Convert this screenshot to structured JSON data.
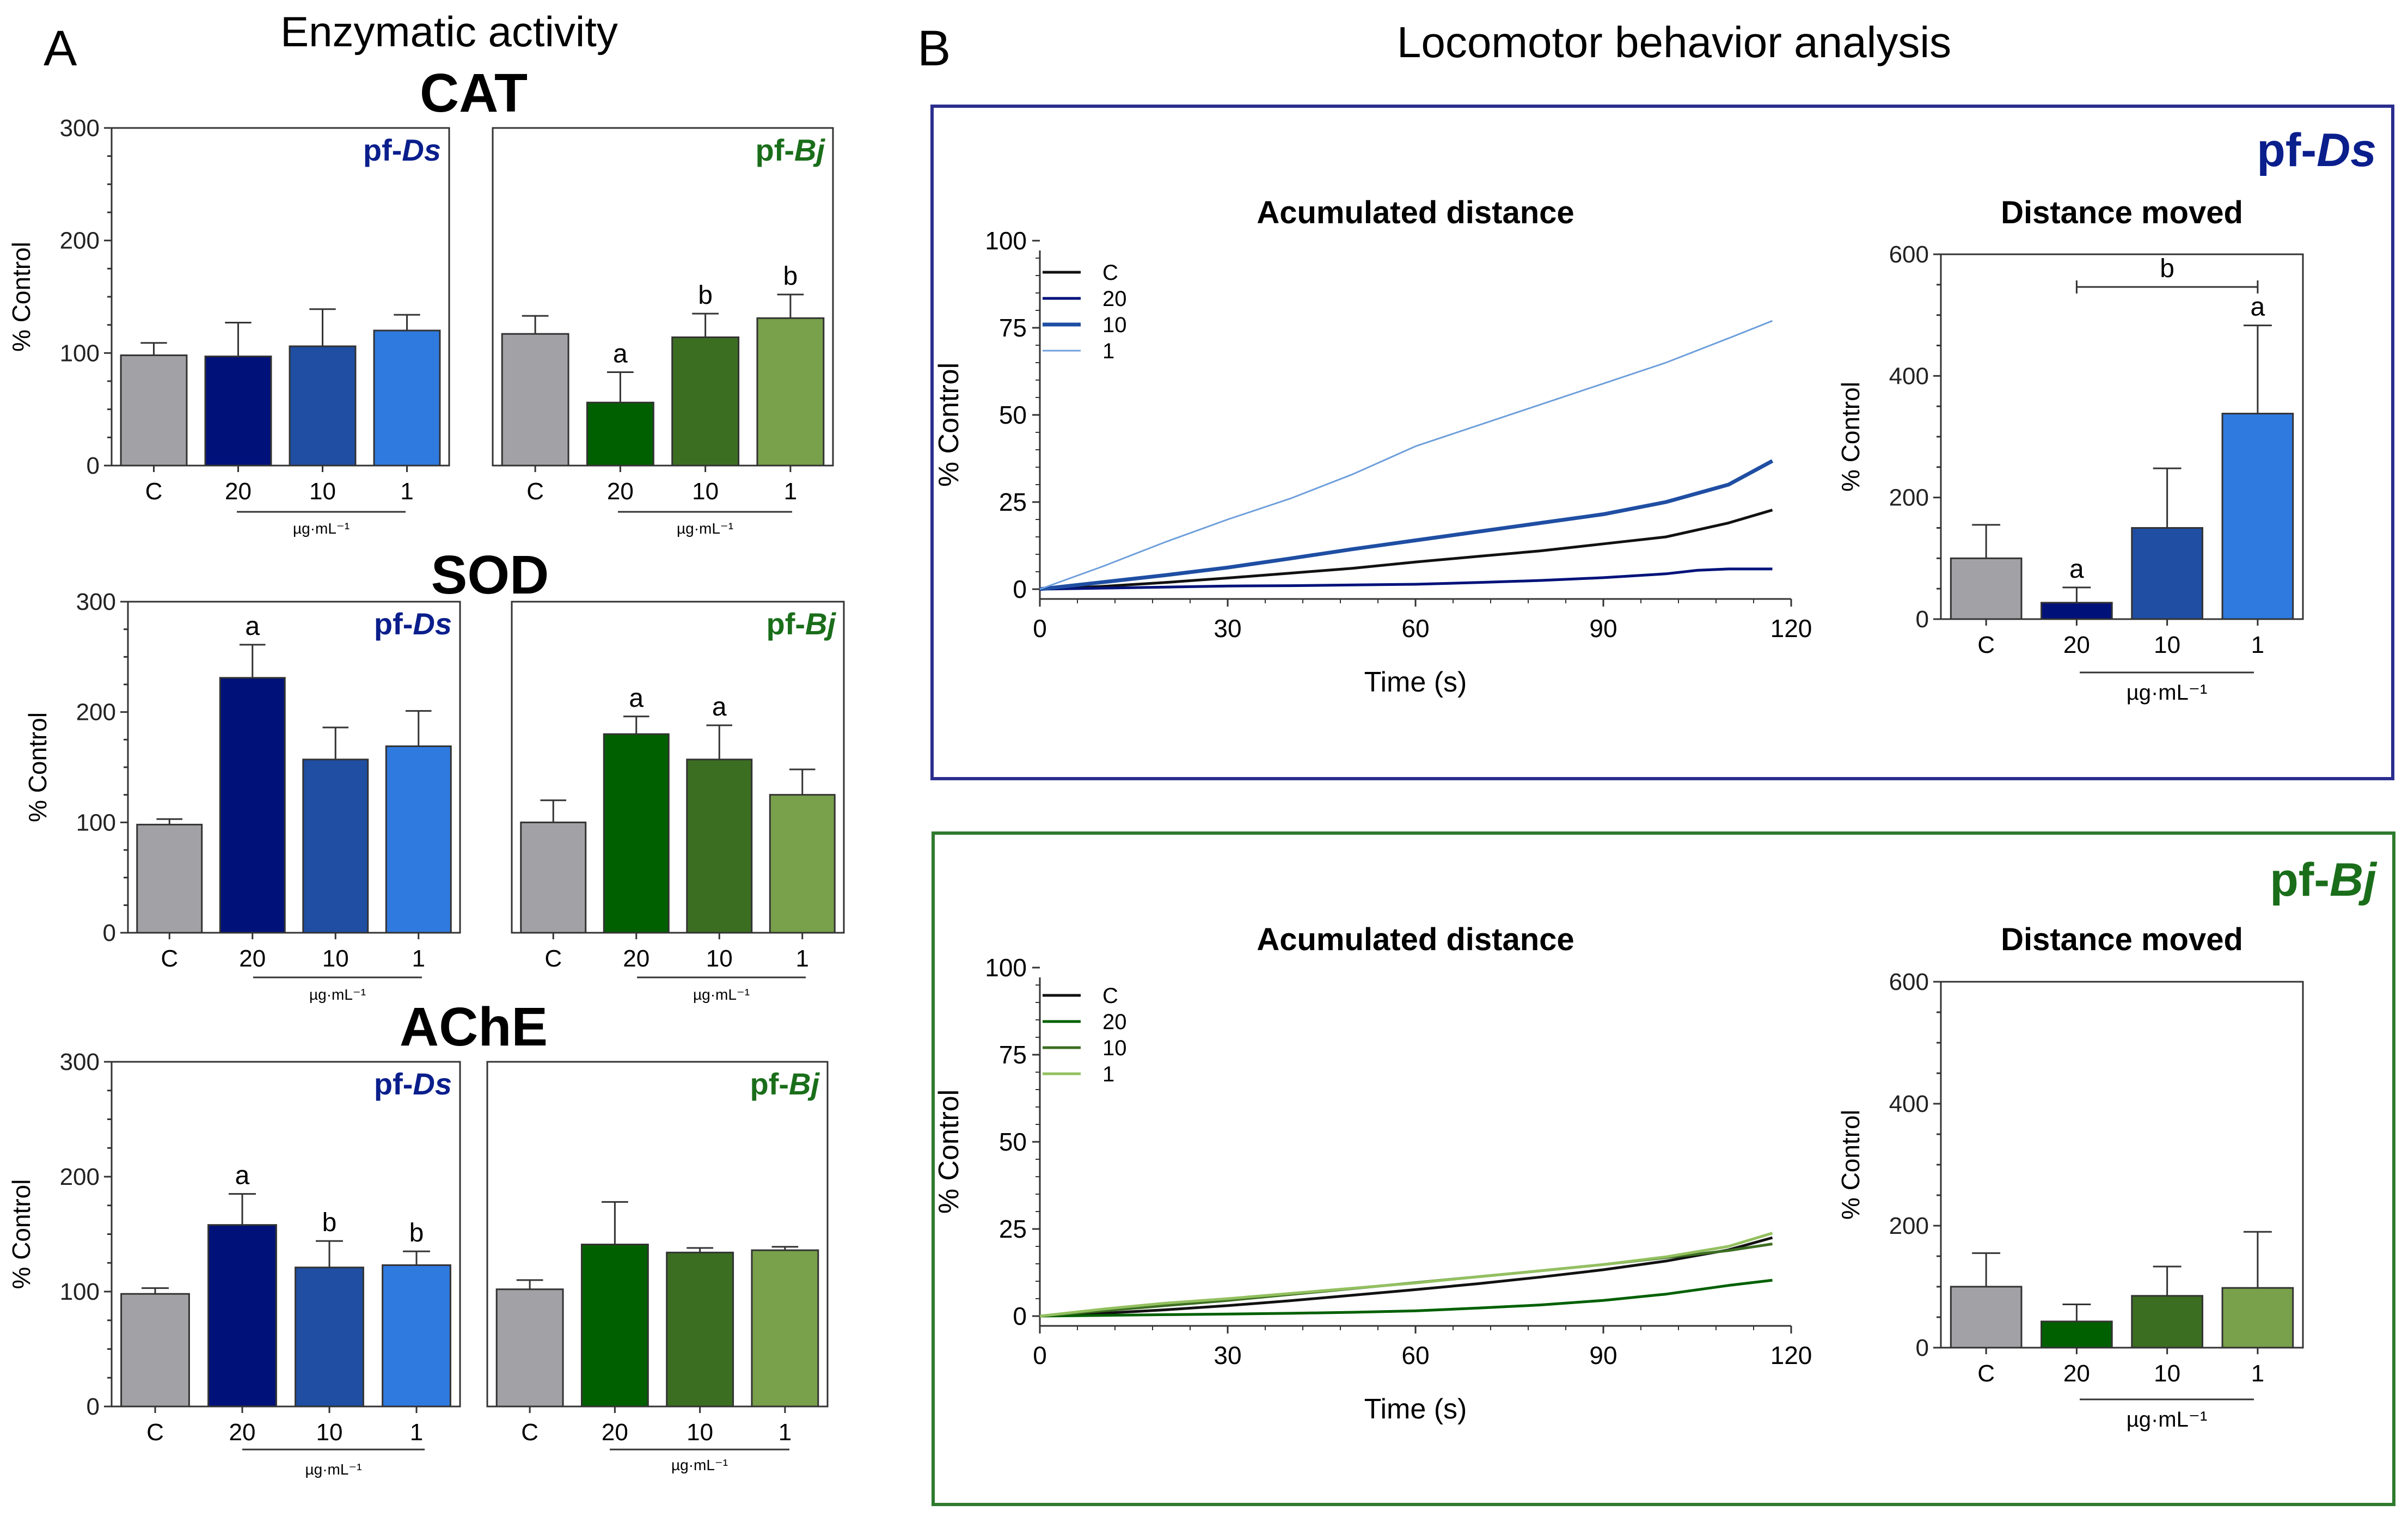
{
  "panel_a": {
    "letter": "A",
    "title": "Enzymatic activity"
  },
  "panel_b": {
    "letter": "B",
    "title": "Locomotor behavior analysis",
    "box_ds_label": {
      "prefix": "pf-",
      "species": "Ds"
    },
    "box_bj_label": {
      "prefix": "pf-",
      "species": "Bj"
    }
  },
  "colors": {
    "gray": "#A2A2A6",
    "ds20": "#00127A",
    "ds10": "#1F4EA3",
    "ds1": "#2F7ADF",
    "bj20": "#006000",
    "bj10": "#3C6E22",
    "bj1": "#79A04A",
    "ds_text": "#0A1E8C",
    "bj_text": "#1A6E1A",
    "ds_box": "#2B2E8E",
    "bj_box": "#2E7A2E",
    "line_ds1": "#6F9FDB",
    "line_bj1": "#93C060"
  },
  "chart_data": [
    {
      "id": "cat_ds",
      "section": "CAT",
      "type": "bar",
      "tag": {
        "prefix": "pf-",
        "species": "Ds"
      },
      "categories": [
        "C",
        "20",
        "10",
        "1"
      ],
      "values": [
        98,
        97,
        106,
        120
      ],
      "errors": [
        11,
        30,
        33,
        14
      ],
      "letters": [
        "",
        "",
        "",
        ""
      ],
      "ylim": [
        0,
        300
      ],
      "yticks": [
        0,
        100,
        200,
        300
      ],
      "ylabel": "% Control",
      "xgroup_label": "µg·mL⁻¹"
    },
    {
      "id": "cat_bj",
      "section": "CAT",
      "type": "bar",
      "tag": {
        "prefix": "pf-",
        "species": "Bj"
      },
      "categories": [
        "C",
        "20",
        "10",
        "1"
      ],
      "values": [
        117,
        56,
        114,
        131
      ],
      "errors": [
        16,
        27,
        21,
        21
      ],
      "letters": [
        "",
        "a",
        "b",
        "b"
      ],
      "ylim": [
        0,
        300
      ],
      "xgroup_label": "µg·mL⁻¹"
    },
    {
      "id": "sod_ds",
      "section": "SOD",
      "type": "bar",
      "tag": {
        "prefix": "pf-",
        "species": "Ds"
      },
      "categories": [
        "C",
        "20",
        "10",
        "1"
      ],
      "values": [
        98,
        231,
        157,
        169
      ],
      "errors": [
        5,
        30,
        29,
        32
      ],
      "letters": [
        "",
        "a",
        "",
        ""
      ],
      "ylim": [
        0,
        300
      ],
      "yticks": [
        0,
        100,
        200,
        300
      ],
      "ylabel": "% Control",
      "xgroup_label": "µg·mL⁻¹"
    },
    {
      "id": "sod_bj",
      "section": "SOD",
      "type": "bar",
      "tag": {
        "prefix": "pf-",
        "species": "Bj"
      },
      "categories": [
        "C",
        "20",
        "10",
        "1"
      ],
      "values": [
        100,
        180,
        157,
        125
      ],
      "errors": [
        20,
        16,
        31,
        23
      ],
      "letters": [
        "",
        "a",
        "a",
        ""
      ],
      "ylim": [
        0,
        300
      ],
      "xgroup_label": "µg·mL⁻¹"
    },
    {
      "id": "ache_ds",
      "section": "AChE",
      "type": "bar",
      "tag": {
        "prefix": "pf-",
        "species": "Ds"
      },
      "categories": [
        "C",
        "20",
        "10",
        "1"
      ],
      "values": [
        98,
        158,
        121,
        123
      ],
      "errors": [
        5,
        27,
        23,
        12
      ],
      "letters": [
        "",
        "a",
        "b",
        "b"
      ],
      "ylim": [
        0,
        300
      ],
      "yticks": [
        0,
        100,
        200,
        300
      ],
      "ylabel": "% Control",
      "xgroup_label": "µg·mL⁻¹"
    },
    {
      "id": "ache_bj",
      "section": "AChE",
      "type": "bar",
      "tag": {
        "prefix": "pf-",
        "species": "Bj"
      },
      "categories": [
        "C",
        "20",
        "10",
        "1"
      ],
      "values": [
        102,
        141,
        134,
        136
      ],
      "errors": [
        8,
        37,
        4,
        3
      ],
      "letters": [
        "",
        "",
        "",
        ""
      ],
      "ylim": [
        0,
        300
      ],
      "xgroup_label": "µg·mL⁻¹"
    },
    {
      "id": "acc_ds",
      "type": "line",
      "title": "Acumulated distance",
      "xlabel": "Time (s)",
      "ylabel": "% Control",
      "xlim": [
        0,
        120
      ],
      "xticks": [
        0,
        30,
        60,
        90,
        120
      ],
      "ylim": [
        0,
        100
      ],
      "yticks": [
        0,
        25,
        50,
        75,
        100
      ],
      "legend_position": "top-left",
      "series": [
        {
          "name": "C",
          "x": [
            0,
            10,
            20,
            30,
            40,
            50,
            60,
            70,
            80,
            90,
            100,
            110,
            117
          ],
          "y": [
            0,
            0.8,
            1.9,
            3.2,
            4.6,
            6,
            7.8,
            9.4,
            11,
            13,
            15,
            19,
            22.7
          ]
        },
        {
          "name": "20",
          "x": [
            0,
            10,
            20,
            30,
            40,
            50,
            60,
            70,
            80,
            90,
            100,
            105,
            110,
            117
          ],
          "y": [
            0,
            0.3,
            0.6,
            0.9,
            1,
            1.2,
            1.4,
            1.9,
            2.5,
            3.3,
            4.4,
            5.4,
            5.8,
            5.8
          ]
        },
        {
          "name": "10",
          "x": [
            0,
            10,
            20,
            30,
            40,
            50,
            60,
            70,
            80,
            90,
            100,
            110,
            117
          ],
          "y": [
            0,
            2,
            4,
            6.2,
            8.8,
            11.5,
            14,
            16.5,
            19,
            21.5,
            25,
            30,
            36.8
          ]
        },
        {
          "name": "1",
          "x": [
            0,
            10,
            20,
            30,
            40,
            50,
            60,
            70,
            80,
            90,
            100,
            110,
            117
          ],
          "y": [
            0,
            6.5,
            13.5,
            20,
            26,
            33,
            41,
            47,
            53,
            59,
            65,
            72,
            77
          ]
        }
      ]
    },
    {
      "id": "dist_ds",
      "type": "bar",
      "title": "Distance moved",
      "categories": [
        "C",
        "20",
        "10",
        "1"
      ],
      "values": [
        100,
        27,
        150,
        338
      ],
      "errors": [
        55,
        25,
        98,
        145
      ],
      "letters": [
        "",
        "a",
        "",
        "a"
      ],
      "bracket": {
        "from": "20",
        "to": "1",
        "label": "b"
      },
      "ylim": [
        0,
        600
      ],
      "yticks": [
        0,
        200,
        400,
        600
      ],
      "ylabel": "% Control",
      "xgroup_label": "µg·mL⁻¹"
    },
    {
      "id": "acc_bj",
      "type": "line",
      "title": "Acumulated distance",
      "xlabel": "Time (s)",
      "ylabel": "% Control",
      "xlim": [
        0,
        120
      ],
      "xticks": [
        0,
        30,
        60,
        90,
        120
      ],
      "ylim": [
        0,
        100
      ],
      "yticks": [
        0,
        25,
        50,
        75,
        100
      ],
      "legend_position": "top-left",
      "series": [
        {
          "name": "C",
          "x": [
            0,
            10,
            20,
            30,
            40,
            50,
            60,
            70,
            80,
            90,
            100,
            110,
            117
          ],
          "y": [
            0,
            0.8,
            1.8,
            3,
            4.4,
            6,
            7.6,
            9.3,
            11.2,
            13.3,
            15.8,
            19,
            22.5
          ]
        },
        {
          "name": "20",
          "x": [
            0,
            10,
            20,
            30,
            40,
            50,
            60,
            70,
            80,
            90,
            100,
            110,
            117
          ],
          "y": [
            0,
            0.2,
            0.4,
            0.6,
            0.8,
            1.1,
            1.5,
            2.3,
            3.2,
            4.5,
            6.3,
            8.8,
            10.3
          ]
        },
        {
          "name": "10",
          "x": [
            0,
            10,
            20,
            30,
            40,
            50,
            60,
            70,
            80,
            90,
            100,
            110,
            117
          ],
          "y": [
            0,
            1.5,
            3,
            4.5,
            6.2,
            7.9,
            9.6,
            11.3,
            13,
            14.8,
            16.8,
            18.8,
            20.7
          ]
        },
        {
          "name": "1",
          "x": [
            0,
            10,
            20,
            30,
            40,
            50,
            60,
            70,
            80,
            90,
            100,
            110,
            117
          ],
          "y": [
            0,
            2,
            3.7,
            5,
            6.5,
            8,
            9.5,
            11.3,
            13,
            14.8,
            17,
            20,
            23.8
          ]
        }
      ]
    },
    {
      "id": "dist_bj",
      "type": "bar",
      "title": "Distance moved",
      "categories": [
        "C",
        "20",
        "10",
        "1"
      ],
      "values": [
        100,
        43,
        85,
        98
      ],
      "errors": [
        55,
        28,
        48,
        92
      ],
      "letters": [
        "",
        "",
        "",
        ""
      ],
      "ylim": [
        0,
        600
      ],
      "yticks": [
        0,
        200,
        400,
        600
      ],
      "ylabel": "% Control",
      "xgroup_label": "µg·mL⁻¹"
    }
  ]
}
